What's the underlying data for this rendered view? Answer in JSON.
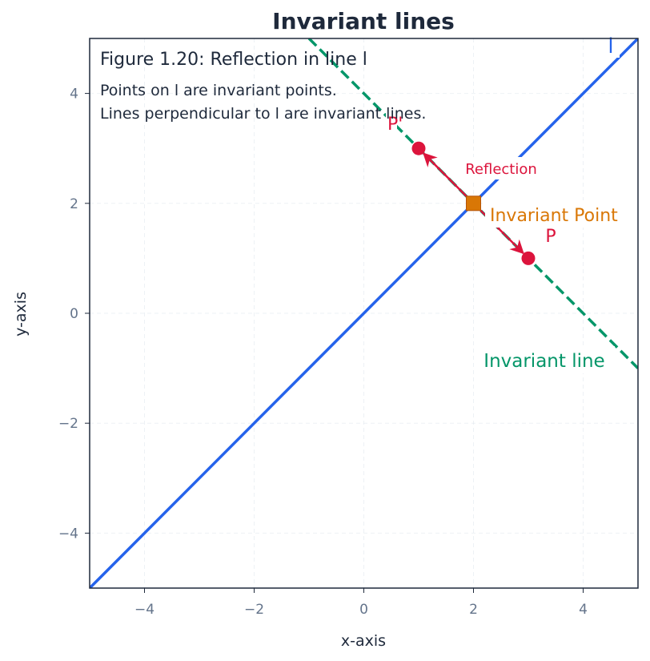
{
  "chart_data": {
    "type": "line",
    "title": "Invariant lines",
    "xlabel": "x-axis",
    "ylabel": "y-axis",
    "xlim": [
      -5,
      5
    ],
    "ylim": [
      -5,
      5
    ],
    "xticks": [
      -4,
      -2,
      0,
      2,
      4
    ],
    "yticks": [
      -4,
      -2,
      0,
      2,
      4
    ],
    "grid": true,
    "series": [
      {
        "name": "l",
        "style": "solid",
        "color": "#2563eb",
        "points": [
          [
            -5,
            -5
          ],
          [
            5,
            5
          ]
        ]
      },
      {
        "name": "Invariant line",
        "style": "dashed",
        "color": "#059669",
        "points": [
          [
            -1,
            5
          ],
          [
            5,
            -1
          ]
        ]
      }
    ],
    "points": [
      {
        "label": "P",
        "x": 3,
        "y": 1,
        "color": "#dc143c"
      },
      {
        "label": "P'",
        "x": 1,
        "y": 3,
        "color": "#dc143c"
      }
    ],
    "invariant_point": {
      "label": "Invariant Point",
      "x": 2,
      "y": 2,
      "color": "#d97706"
    },
    "reflection_arrows": {
      "label": "Reflection",
      "from": [
        2,
        2
      ],
      "to": [
        [
          1,
          3
        ],
        [
          3,
          1
        ]
      ],
      "color": "#dc143c"
    },
    "annotations": {
      "figure_caption": "Figure 1.20: Reflection in line l",
      "note_line1": "Points on l are invariant points.",
      "note_line2": "Lines perpendicular to l are invariant lines.",
      "line_l_label": "l",
      "invariant_line_label": "Invariant line",
      "p_label": "P",
      "p_prime_label": "P'"
    },
    "colors": {
      "line_l": "#2563eb",
      "invariant_line": "#059669",
      "points": "#dc143c",
      "invariant_point": "#d97706",
      "text": "#1e293b",
      "ticks": "#64748b"
    }
  }
}
